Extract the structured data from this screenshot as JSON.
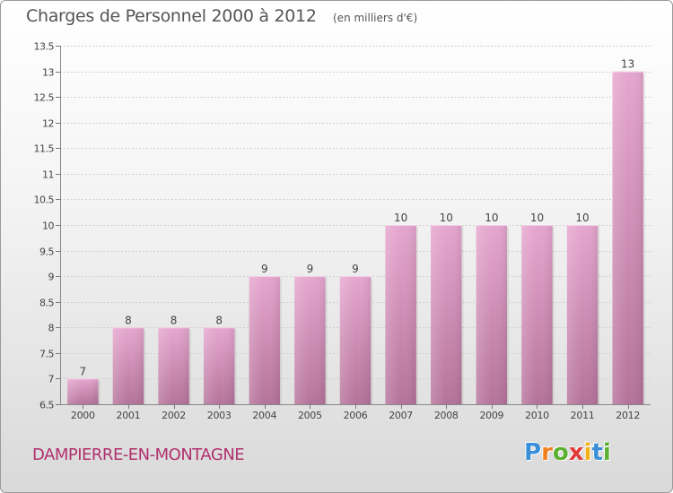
{
  "header": {
    "title": "Charges de Personnel 2000 à 2012",
    "subtitle": "(en milliers d'€)"
  },
  "footer": {
    "commune": "DAMPIERRE-EN-MONTAGNE",
    "logo_letters": [
      "P",
      "r",
      "o",
      "x",
      "i",
      "t",
      "i"
    ],
    "logo_colors": [
      "#3a8fd8",
      "#f07f1e",
      "#5bb030",
      "#e23a3a",
      "#f2b318",
      "#3a8fd8",
      "#5bb030"
    ]
  },
  "colors": {
    "bar_top": "#e6a6cf",
    "bar_bottom": "#b5739a",
    "axis_text": "#444444",
    "grid": "#cfcfcf",
    "commune_text": "#b0306e"
  },
  "chart_data": {
    "type": "bar",
    "categories": [
      "2000",
      "2001",
      "2002",
      "2003",
      "2004",
      "2005",
      "2006",
      "2007",
      "2008",
      "2009",
      "2010",
      "2011",
      "2012"
    ],
    "values": [
      7,
      8,
      8,
      8,
      9,
      9,
      9,
      10,
      10,
      10,
      10,
      10,
      13
    ],
    "value_labels": [
      "7",
      "8",
      "8",
      "8",
      "9",
      "9",
      "9",
      "10",
      "10",
      "10",
      "10",
      "10",
      "13"
    ],
    "title": "Charges de Personnel 2000 à 2012",
    "xlabel": "",
    "ylabel": "",
    "ylim": [
      6.5,
      13.5
    ],
    "yticks": [
      6.5,
      7,
      7.5,
      8,
      8.5,
      9,
      9.5,
      10,
      10.5,
      11,
      11.5,
      12,
      12.5,
      13,
      13.5
    ],
    "ytick_labels": [
      "6.5",
      "7",
      "7.5",
      "8",
      "8.5",
      "9",
      "9.5",
      "10",
      "10.5",
      "11",
      "11.5",
      "12",
      "12.5",
      "13",
      "13.5"
    ],
    "grid": true,
    "legend": "none"
  }
}
